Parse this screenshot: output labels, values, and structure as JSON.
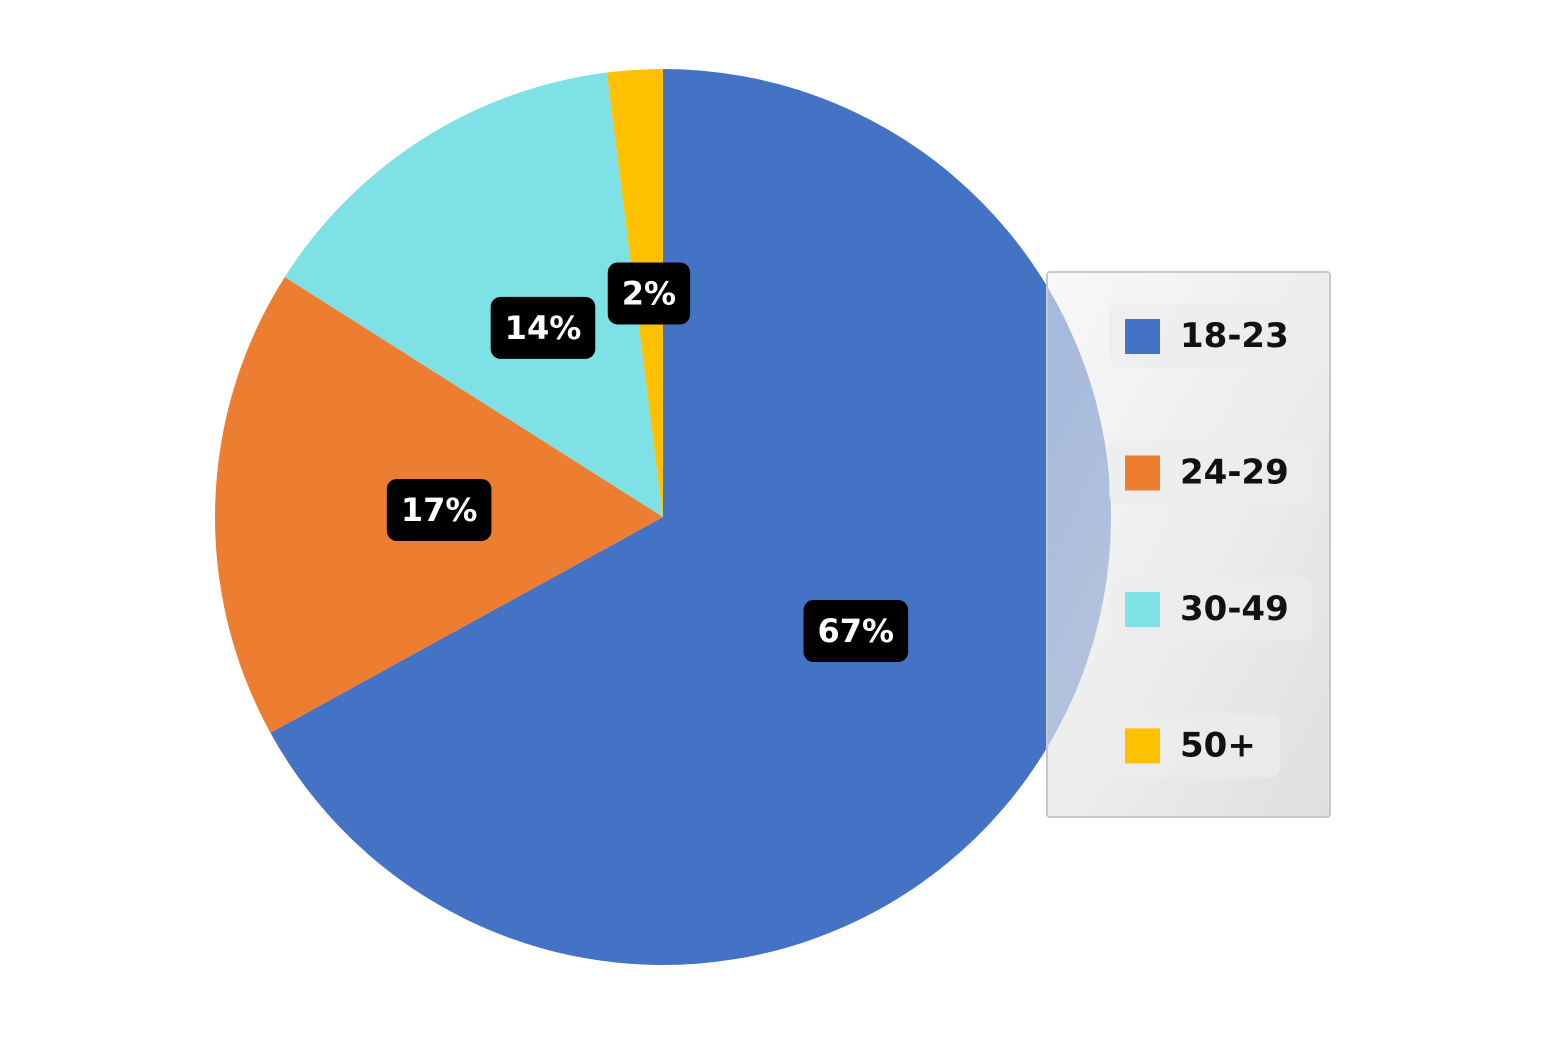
{
  "chart_data": {
    "type": "pie",
    "categories": [
      "18-23",
      "24-29",
      "30-49",
      "50+"
    ],
    "values": [
      67,
      17,
      14,
      2
    ],
    "value_labels": [
      "67%",
      "17%",
      "14%",
      "2%"
    ],
    "colors": [
      "#4472c4",
      "#ed7d31",
      "#7ee1e6",
      "#ffc000"
    ],
    "legend": "right"
  }
}
